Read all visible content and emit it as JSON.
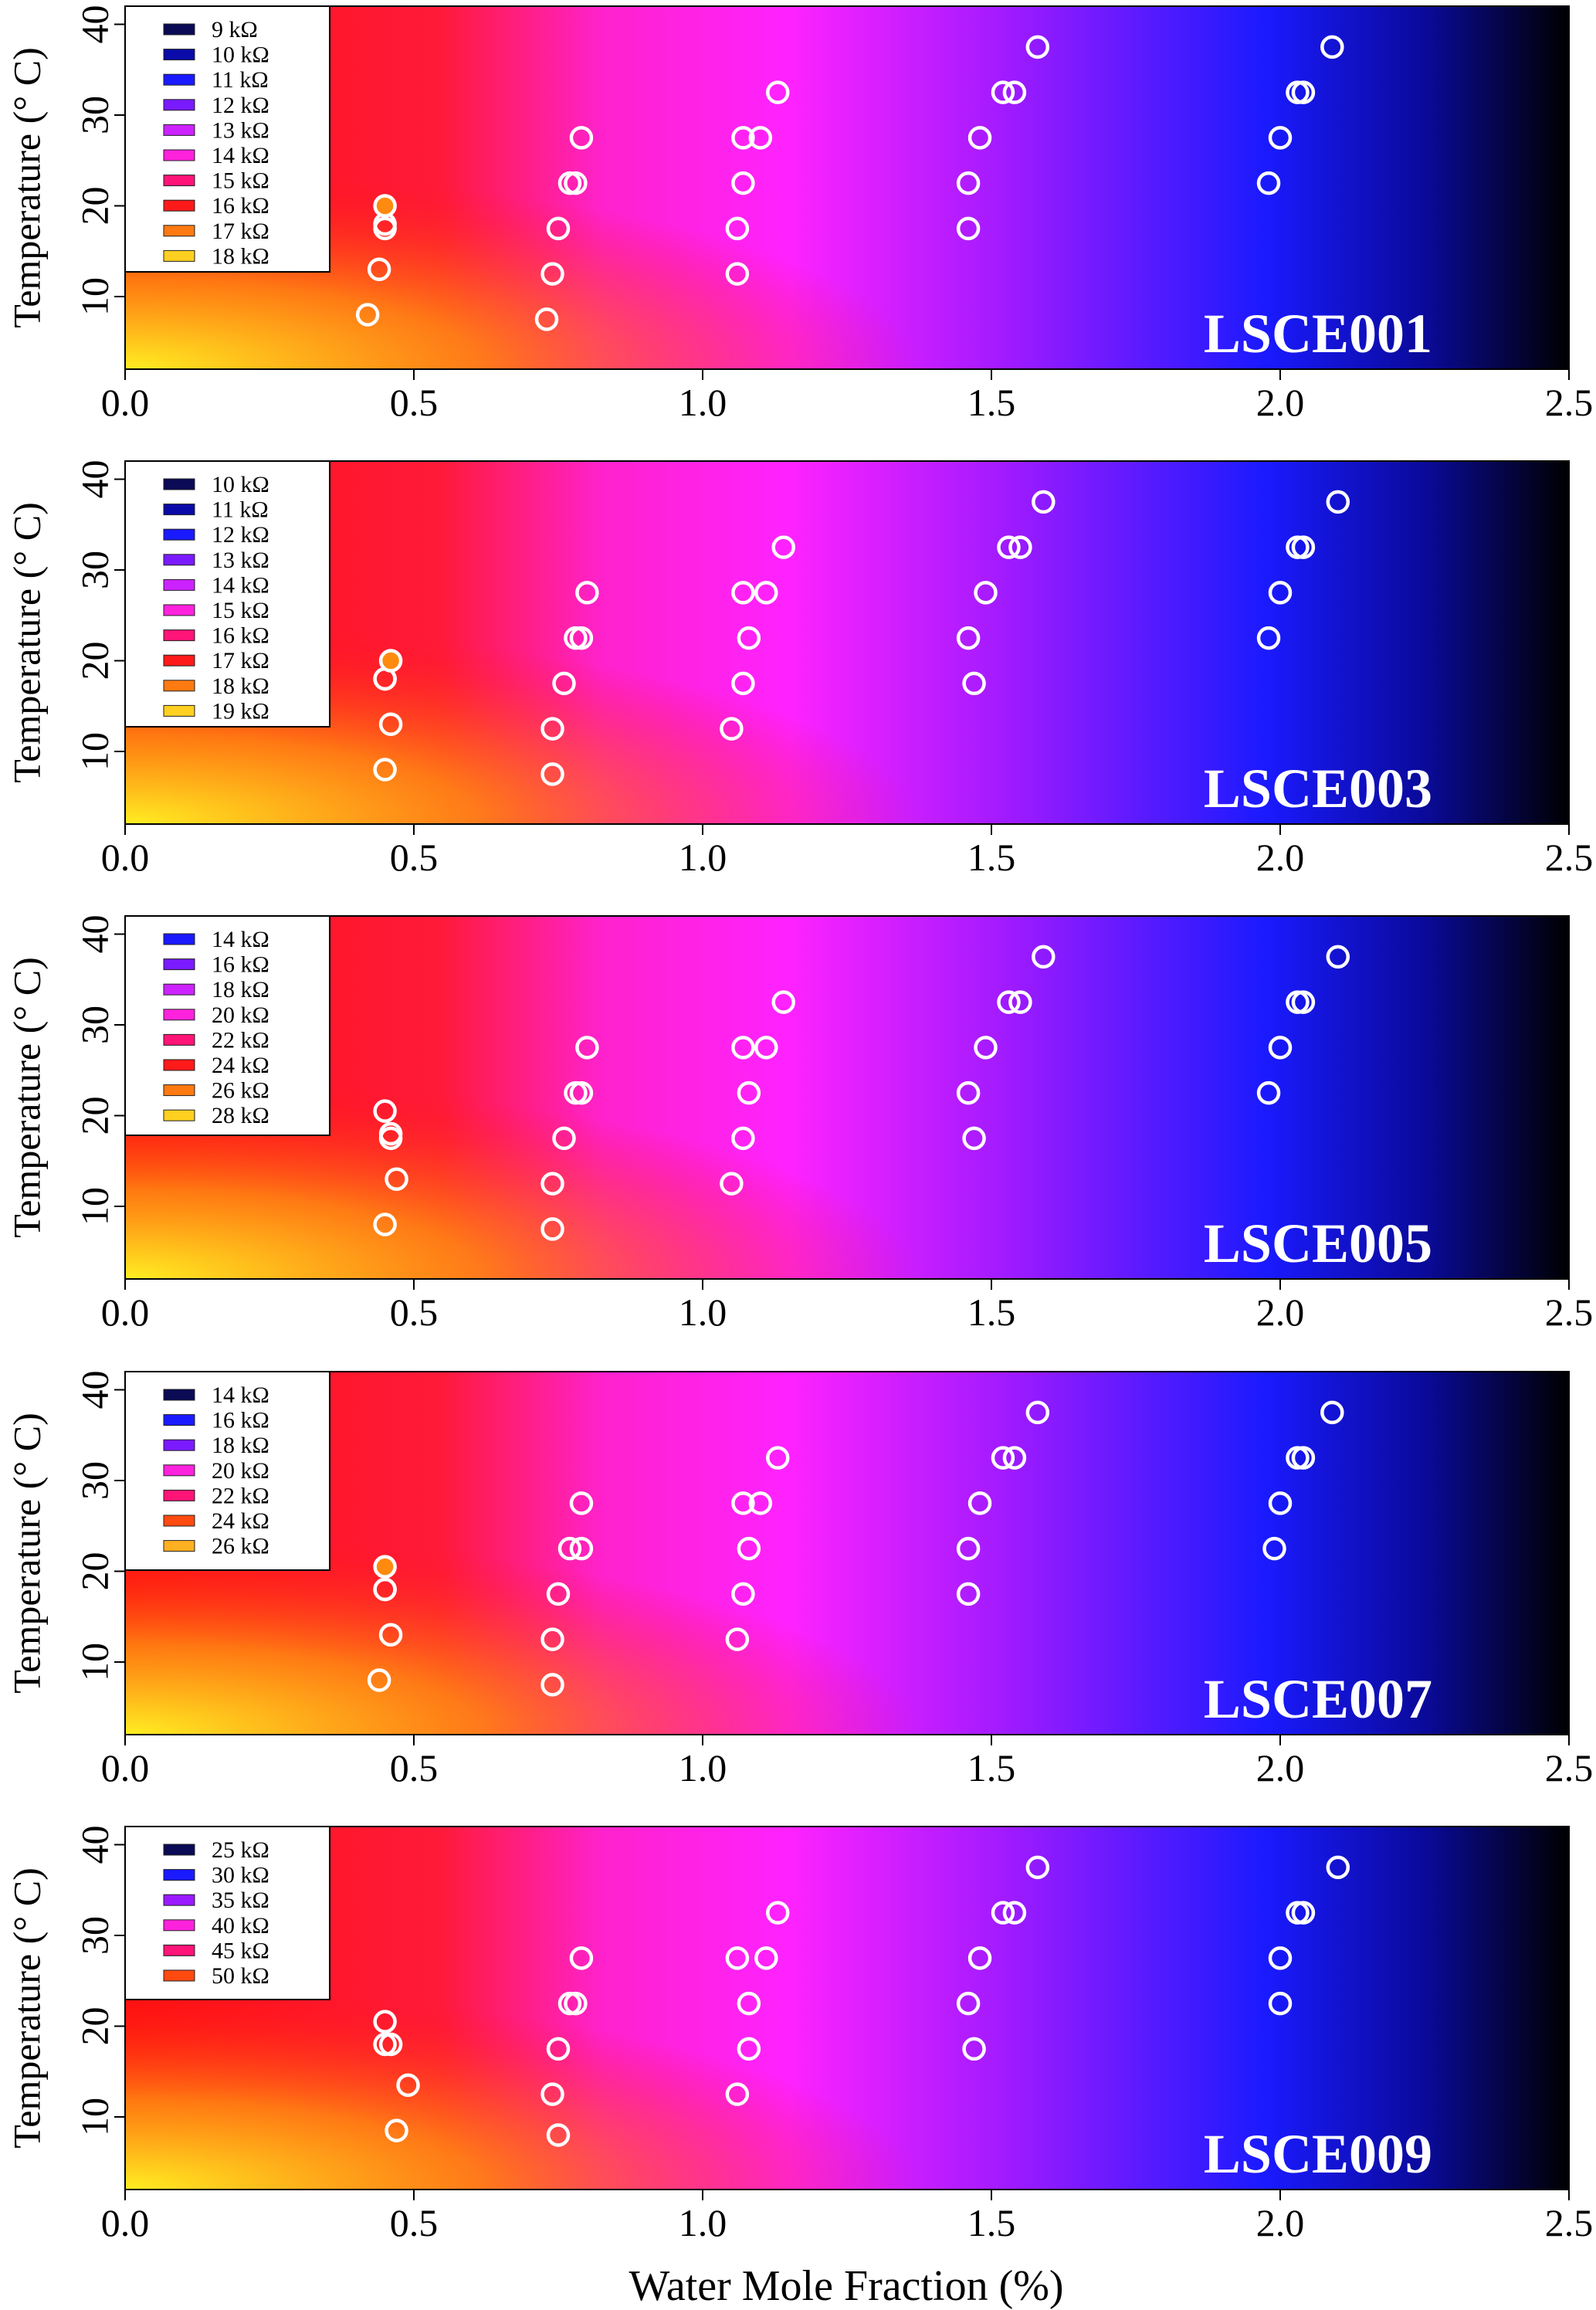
{
  "figure": {
    "xlabel": "Water Mole Fraction (%)"
  },
  "chart_data": [
    {
      "type": "scatter",
      "title": "LSCE001",
      "ylabel": "Temperature (° C)",
      "xlim": [
        0,
        2.5
      ],
      "ylim": [
        2,
        42
      ],
      "xticks": [
        "0.0",
        "0.5",
        "1.0",
        "1.5",
        "2.0",
        "2.5"
      ],
      "yticks": [
        "10",
        "20",
        "30",
        "40"
      ],
      "legend": [
        {
          "label": "9 kΩ",
          "color": "#0a0a55"
        },
        {
          "label": "10 kΩ",
          "color": "#0a0aa8"
        },
        {
          "label": "11 kΩ",
          "color": "#1a1aff"
        },
        {
          "label": "12 kΩ",
          "color": "#7a1aff"
        },
        {
          "label": "13 kΩ",
          "color": "#cc22ff"
        },
        {
          "label": "14 kΩ",
          "color": "#ff22dd"
        },
        {
          "label": "15 kΩ",
          "color": "#ff1477"
        },
        {
          "label": "16 kΩ",
          "color": "#ff1a1a"
        },
        {
          "label": "17 kΩ",
          "color": "#ff7a10"
        },
        {
          "label": "18 kΩ",
          "color": "#ffd020"
        }
      ],
      "points": {
        "x": [
          0.42,
          0.44,
          0.45,
          0.45,
          0.45,
          0.73,
          0.74,
          0.75,
          0.77,
          0.78,
          0.79,
          1.06,
          1.06,
          1.07,
          1.07,
          1.1,
          1.13,
          1.46,
          1.46,
          1.48,
          1.52,
          1.54,
          1.58,
          1.98,
          2.0,
          2.03,
          2.04,
          2.09
        ],
        "y": [
          8,
          13,
          17.5,
          18,
          20,
          7.5,
          12.5,
          17.5,
          22.5,
          22.5,
          27.5,
          12.5,
          17.5,
          22.5,
          27.5,
          27.5,
          32.5,
          17.5,
          22.5,
          27.5,
          32.5,
          32.5,
          37.5,
          22.5,
          27.5,
          32.5,
          32.5,
          37.5
        ],
        "highlight_index": 4
      }
    },
    {
      "type": "scatter",
      "title": "LSCE003",
      "ylabel": "Temperature (° C)",
      "xlim": [
        0,
        2.5
      ],
      "ylim": [
        2,
        42
      ],
      "xticks": [
        "0.0",
        "0.5",
        "1.0",
        "1.5",
        "2.0",
        "2.5"
      ],
      "yticks": [
        "10",
        "20",
        "30",
        "40"
      ],
      "legend": [
        {
          "label": "10 kΩ",
          "color": "#0a0a55"
        },
        {
          "label": "11 kΩ",
          "color": "#0a0aa8"
        },
        {
          "label": "12 kΩ",
          "color": "#1a1aff"
        },
        {
          "label": "13 kΩ",
          "color": "#7a1aff"
        },
        {
          "label": "14 kΩ",
          "color": "#cc22ff"
        },
        {
          "label": "15 kΩ",
          "color": "#ff22dd"
        },
        {
          "label": "16 kΩ",
          "color": "#ff1477"
        },
        {
          "label": "17 kΩ",
          "color": "#ff1a1a"
        },
        {
          "label": "18 kΩ",
          "color": "#ff7a10"
        },
        {
          "label": "19 kΩ",
          "color": "#ffd020"
        }
      ],
      "points": {
        "x": [
          0.45,
          0.45,
          0.45,
          0.46,
          0.46,
          0.74,
          0.74,
          0.76,
          0.78,
          0.79,
          0.8,
          1.05,
          1.07,
          1.08,
          1.07,
          1.11,
          1.14,
          1.47,
          1.46,
          1.49,
          1.53,
          1.55,
          1.59,
          1.98,
          2.0,
          2.03,
          2.04,
          2.1
        ],
        "y": [
          8,
          18,
          18,
          13,
          20,
          7.5,
          12.5,
          17.5,
          22.5,
          22.5,
          27.5,
          12.5,
          17.5,
          22.5,
          27.5,
          27.5,
          32.5,
          17.5,
          22.5,
          27.5,
          32.5,
          32.5,
          37.5,
          22.5,
          27.5,
          32.5,
          32.5,
          37.5
        ],
        "highlight_index": 4
      }
    },
    {
      "type": "scatter",
      "title": "LSCE005",
      "ylabel": "Temperature (° C)",
      "xlim": [
        0,
        2.5
      ],
      "ylim": [
        2,
        42
      ],
      "xticks": [
        "0.0",
        "0.5",
        "1.0",
        "1.5",
        "2.0",
        "2.5"
      ],
      "yticks": [
        "10",
        "20",
        "30",
        "40"
      ],
      "legend": [
        {
          "label": "14 kΩ",
          "color": "#1a1aff"
        },
        {
          "label": "16 kΩ",
          "color": "#7a1aff"
        },
        {
          "label": "18 kΩ",
          "color": "#cc22ff"
        },
        {
          "label": "20 kΩ",
          "color": "#ff22dd"
        },
        {
          "label": "22 kΩ",
          "color": "#ff1477"
        },
        {
          "label": "24 kΩ",
          "color": "#ff1a1a"
        },
        {
          "label": "26 kΩ",
          "color": "#ff7a10"
        },
        {
          "label": "28 kΩ",
          "color": "#ffd020"
        }
      ],
      "points": {
        "x": [
          0.45,
          0.46,
          0.46,
          0.47,
          0.45,
          0.74,
          0.74,
          0.76,
          0.78,
          0.79,
          0.8,
          1.05,
          1.07,
          1.08,
          1.07,
          1.11,
          1.14,
          1.47,
          1.46,
          1.49,
          1.53,
          1.55,
          1.59,
          1.98,
          2.0,
          2.03,
          2.04,
          2.1
        ],
        "y": [
          8,
          17.5,
          18,
          13,
          20.5,
          7.5,
          12.5,
          17.5,
          22.5,
          22.5,
          27.5,
          12.5,
          17.5,
          22.5,
          27.5,
          27.5,
          32.5,
          17.5,
          22.5,
          27.5,
          32.5,
          32.5,
          37.5,
          22.5,
          27.5,
          32.5,
          32.5,
          37.5
        ],
        "highlight_index": -1
      }
    },
    {
      "type": "scatter",
      "title": "LSCE007",
      "ylabel": "Temperature (° C)",
      "xlim": [
        0,
        2.5
      ],
      "ylim": [
        2,
        42
      ],
      "xticks": [
        "0.0",
        "0.5",
        "1.0",
        "1.5",
        "2.0",
        "2.5"
      ],
      "yticks": [
        "10",
        "20",
        "30",
        "40"
      ],
      "legend": [
        {
          "label": "14 kΩ",
          "color": "#0a0a55"
        },
        {
          "label": "16 kΩ",
          "color": "#1a1aff"
        },
        {
          "label": "18 kΩ",
          "color": "#7a1aff"
        },
        {
          "label": "20 kΩ",
          "color": "#ff22dd"
        },
        {
          "label": "22 kΩ",
          "color": "#ff1477"
        },
        {
          "label": "24 kΩ",
          "color": "#ff4a10"
        },
        {
          "label": "26 kΩ",
          "color": "#ffb020"
        }
      ],
      "points": {
        "x": [
          0.44,
          0.46,
          0.45,
          0.45,
          0.45,
          0.74,
          0.74,
          0.75,
          0.77,
          0.79,
          0.79,
          1.06,
          1.07,
          1.08,
          1.07,
          1.1,
          1.13,
          1.46,
          1.46,
          1.48,
          1.52,
          1.54,
          1.58,
          1.99,
          2.0,
          2.03,
          2.04,
          2.09
        ],
        "y": [
          8,
          13,
          18,
          18,
          20.5,
          7.5,
          12.5,
          17.5,
          22.5,
          22.5,
          27.5,
          12.5,
          17.5,
          22.5,
          27.5,
          27.5,
          32.5,
          17.5,
          22.5,
          27.5,
          32.5,
          32.5,
          37.5,
          22.5,
          27.5,
          32.5,
          32.5,
          37.5
        ],
        "highlight_index": 4
      }
    },
    {
      "type": "scatter",
      "title": "LSCE009",
      "ylabel": "Temperature (° C)",
      "xlim": [
        0,
        2.5
      ],
      "ylim": [
        2,
        42
      ],
      "xticks": [
        "0.0",
        "0.5",
        "1.0",
        "1.5",
        "2.0",
        "2.5"
      ],
      "yticks": [
        "10",
        "20",
        "30",
        "40"
      ],
      "legend": [
        {
          "label": "25 kΩ",
          "color": "#0a0a55"
        },
        {
          "label": "30 kΩ",
          "color": "#1a1aff"
        },
        {
          "label": "35 kΩ",
          "color": "#9a1aff"
        },
        {
          "label": "40 kΩ",
          "color": "#ff22dd"
        },
        {
          "label": "45 kΩ",
          "color": "#ff1477"
        },
        {
          "label": "50 kΩ",
          "color": "#ff4a10"
        }
      ],
      "points": {
        "x": [
          0.47,
          0.49,
          0.46,
          0.45,
          0.45,
          0.75,
          0.74,
          0.75,
          0.77,
          0.78,
          0.79,
          1.06,
          1.08,
          1.08,
          1.06,
          1.11,
          1.13,
          1.47,
          1.46,
          1.48,
          1.52,
          1.54,
          1.58,
          2.0,
          2.0,
          2.03,
          2.04,
          2.1
        ],
        "y": [
          8.5,
          13.5,
          18,
          18,
          20.5,
          8,
          12.5,
          17.5,
          22.5,
          22.5,
          27.5,
          12.5,
          17.5,
          22.5,
          27.5,
          27.5,
          32.5,
          17.5,
          22.5,
          27.5,
          32.5,
          32.5,
          37.5,
          22.5,
          27.5,
          32.5,
          32.5,
          37.5
        ],
        "highlight_index": -1
      }
    }
  ]
}
